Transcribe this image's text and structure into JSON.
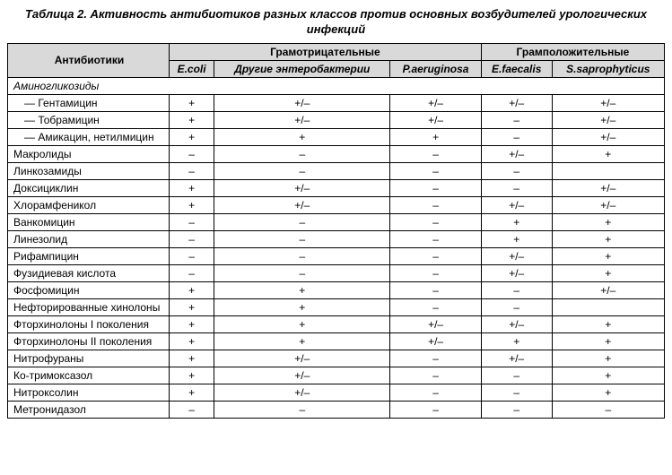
{
  "title": "Таблица 2. Активность антибиотиков разных классов против основных возбудителей урологических инфекций",
  "headers": {
    "antibiotics": "Антибиотики",
    "gram_neg": "Грамотрицательные",
    "gram_pos": "Грамположительные",
    "cols": [
      "E.coli",
      "Другие энтеробактерии",
      "P.aeruginosa",
      "E.faecalis",
      "S.saprophyticus"
    ]
  },
  "rows": [
    {
      "type": "section",
      "name": "Аминогликозиды"
    },
    {
      "type": "indent",
      "name": "— Гентамицин",
      "vals": [
        "+",
        "+/–",
        "+/–",
        "+/–",
        "+/–"
      ]
    },
    {
      "type": "indent",
      "name": "— Тобрамицин",
      "vals": [
        "+",
        "+/–",
        "+/–",
        "–",
        "+/–"
      ]
    },
    {
      "type": "indent",
      "name": "— Амикацин, нетилмицин",
      "vals": [
        "+",
        "+",
        "+",
        "–",
        "+/–"
      ]
    },
    {
      "type": "row",
      "name": "Макролиды",
      "vals": [
        "–",
        "–",
        "–",
        "+/–",
        "+"
      ]
    },
    {
      "type": "row",
      "name": "Линкозамиды",
      "vals": [
        "–",
        "–",
        "–",
        "–",
        ""
      ]
    },
    {
      "type": "row",
      "name": "Доксициклин",
      "vals": [
        "+",
        "+/–",
        "–",
        "–",
        "+/–"
      ]
    },
    {
      "type": "row",
      "name": "Хлорамфеникол",
      "vals": [
        "+",
        "+/–",
        "–",
        "+/–",
        "+/–"
      ]
    },
    {
      "type": "row",
      "name": "Ванкомицин",
      "vals": [
        "–",
        "–",
        "–",
        "+",
        "+"
      ]
    },
    {
      "type": "row",
      "name": "Линезолид",
      "vals": [
        "–",
        "–",
        "–",
        "+",
        "+"
      ]
    },
    {
      "type": "row",
      "name": "Рифампицин",
      "vals": [
        "–",
        "–",
        "–",
        "+/–",
        "+"
      ]
    },
    {
      "type": "row",
      "name": "Фузидиевая кислота",
      "vals": [
        "–",
        "–",
        "–",
        "+/–",
        "+"
      ]
    },
    {
      "type": "row",
      "name": "Фосфомицин",
      "vals": [
        "+",
        "+",
        "–",
        "–",
        "+/–"
      ]
    },
    {
      "type": "row",
      "name": "Нефторированные хинолоны",
      "vals": [
        "+",
        "+",
        "–",
        "–",
        ""
      ]
    },
    {
      "type": "row",
      "name": "Фторхинолоны I поколения",
      "vals": [
        "+",
        "+",
        "+/–",
        "+/–",
        "+"
      ]
    },
    {
      "type": "row",
      "name": "Фторхинолоны II поколения",
      "vals": [
        "+",
        "+",
        "+/–",
        "+",
        "+"
      ]
    },
    {
      "type": "row",
      "name": "Нитрофураны",
      "vals": [
        "+",
        "+/–",
        "–",
        "+/–",
        "+"
      ]
    },
    {
      "type": "row",
      "name": "Ко-тримоксазол",
      "vals": [
        "+",
        "+/–",
        "–",
        "–",
        "+"
      ]
    },
    {
      "type": "row",
      "name": "Нитроксолин",
      "vals": [
        "+",
        "+/–",
        "–",
        "–",
        "+"
      ]
    },
    {
      "type": "row",
      "name": "Метронидазол",
      "vals": [
        "–",
        "–",
        "–",
        "–",
        "–"
      ]
    }
  ]
}
